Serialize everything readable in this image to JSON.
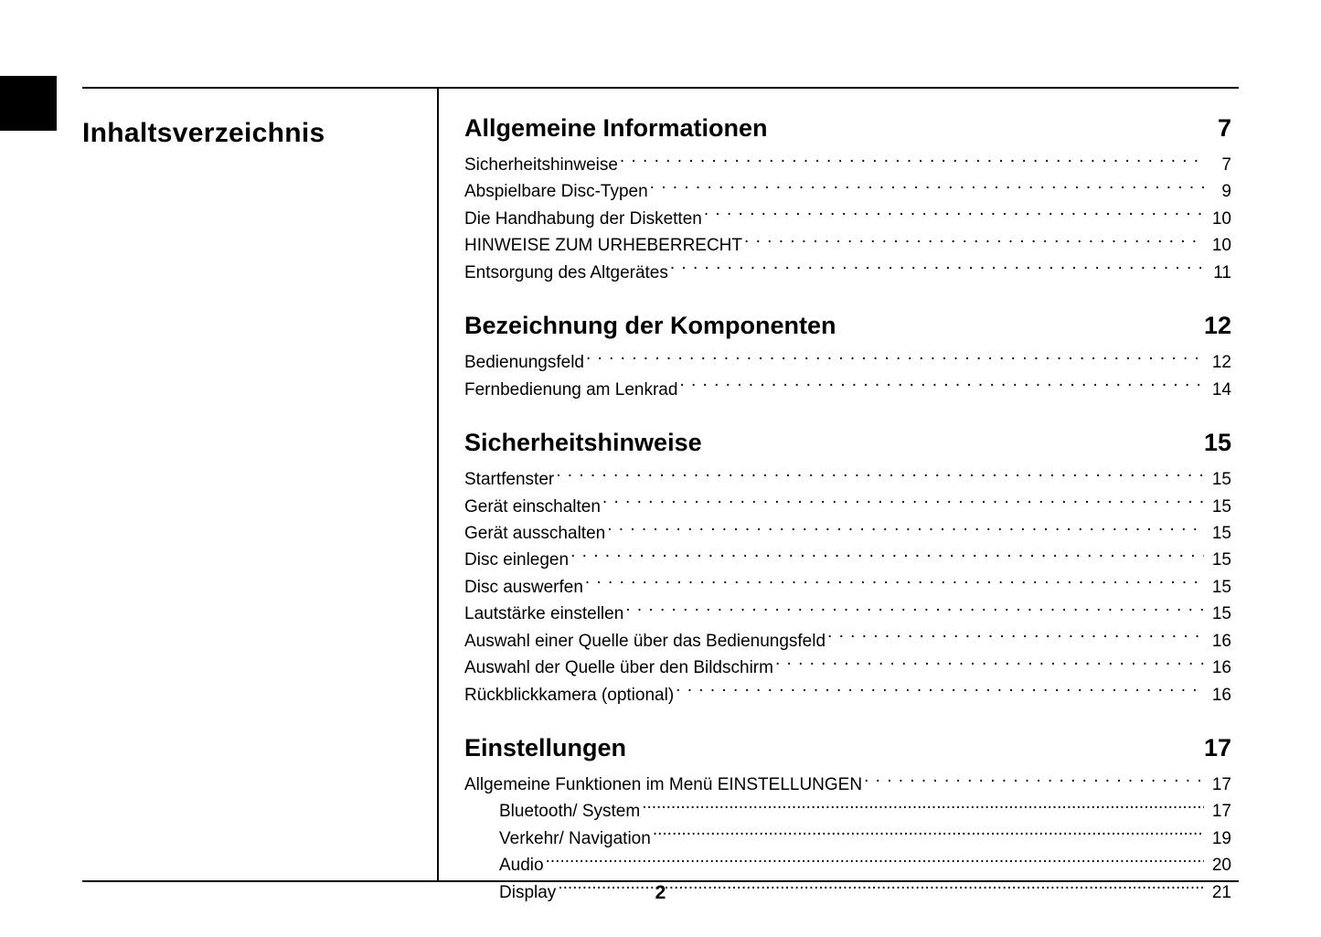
{
  "page_number": "2",
  "toc_title": "Inhaltsverzeichnis",
  "colors": {
    "tab": "#000000",
    "text": "#000000",
    "rule": "#000000",
    "background": "#ffffff"
  },
  "typography": {
    "toc_title_pt": 30,
    "section_heading_pt": 27,
    "entry_pt": 19,
    "footer_pt": 21,
    "font_family": "sans-serif"
  },
  "sections": [
    {
      "title": "Allgemeine Informationen",
      "page": "7",
      "entries": [
        {
          "label": "Sicherheitshinweise",
          "page": "7",
          "indent": 0
        },
        {
          "label": "Abspielbare Disc-Typen",
          "page": "9",
          "indent": 0
        },
        {
          "label": "Die  Handhabung der Disketten",
          "page": "10",
          "indent": 0
        },
        {
          "label": "HINWEISE ZUM URHEBERRECHT",
          "page": "10",
          "indent": 0
        },
        {
          "label": "Entsorgung des Altgerätes",
          "page": "11",
          "indent": 0
        }
      ]
    },
    {
      "title": "Bezeichnung der Komponenten",
      "page": "12",
      "entries": [
        {
          "label": "Bedienungsfeld",
          "page": "12",
          "indent": 0
        },
        {
          "label": "Fernbedienung am Lenkrad",
          "page": "14",
          "indent": 0
        }
      ]
    },
    {
      "title": "Sicherheitshinweise",
      "page": "15",
      "entries": [
        {
          "label": "Startfenster",
          "page": "15",
          "indent": 0
        },
        {
          "label": "Gerät einschalten",
          "page": "15",
          "indent": 0
        },
        {
          "label": "Gerät ausschalten",
          "page": "15",
          "indent": 0
        },
        {
          "label": "Disc einlegen",
          "page": "15",
          "indent": 0
        },
        {
          "label": "Disc auswerfen",
          "page": "15",
          "indent": 0
        },
        {
          "label": "Lautstärke einstellen",
          "page": "15",
          "indent": 0
        },
        {
          "label": "Auswahl einer Quelle über das Bedienungsfeld",
          "page": "16",
          "indent": 0
        },
        {
          "label": "Auswahl der Quelle über den Bildschirm",
          "page": "16",
          "indent": 0
        },
        {
          "label": "Rückblickkamera (optional)",
          "page": "16",
          "indent": 0
        }
      ]
    },
    {
      "title": "Einstellungen",
      "page": "17",
      "entries": [
        {
          "label": "Allgemeine Funktionen im Menü EINSTELLUNGEN",
          "page": "17",
          "indent": 0
        },
        {
          "label": "Bluetooth/ System",
          "page": "17",
          "indent": 1
        },
        {
          "label": "Verkehr/ Navigation",
          "page": "19",
          "indent": 1
        },
        {
          "label": "Audio",
          "page": "20",
          "indent": 1
        },
        {
          "label": "Display",
          "page": "21",
          "indent": 1
        }
      ]
    }
  ]
}
